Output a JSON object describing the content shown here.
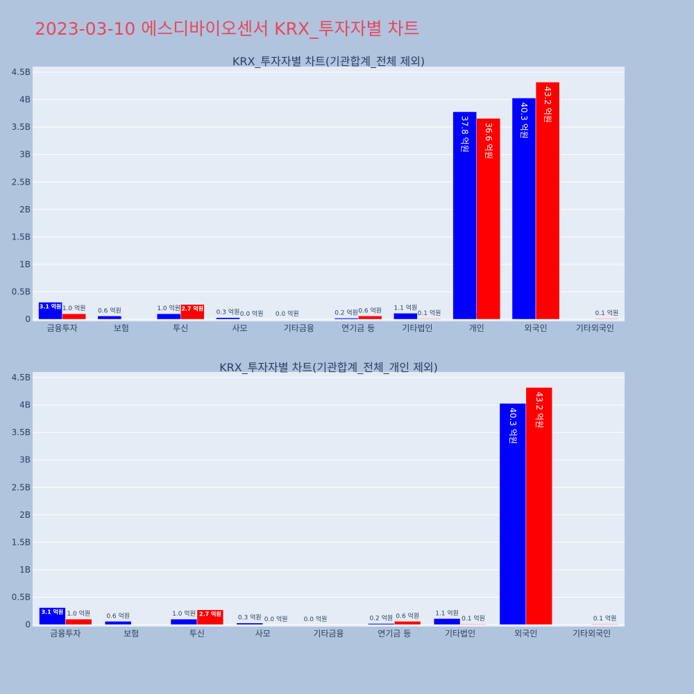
{
  "page_title": "2023-03-10 에스디바이오센서 KRX_투자자별 차트",
  "colors": {
    "buy": "#0000ff",
    "sell": "#ff0000",
    "plot_bg": "#e5ecf6",
    "page_bg": "#b0c4de",
    "title": "#e8475a"
  },
  "chart_data": [
    {
      "type": "bar",
      "title": "KRX_투자자별 차트(기관합계_전체 제외)",
      "categories": [
        "금융투자",
        "보험",
        "투신",
        "사모",
        "기타금융",
        "연기금 등",
        "기타법인",
        "개인",
        "외국인",
        "기타외국인"
      ],
      "series": [
        {
          "values": [
            0.31,
            0.06,
            0.1,
            0.03,
            0.0,
            0.02,
            0.11,
            3.78,
            4.03,
            0.0
          ],
          "labels": [
            "3.1 억원",
            "0.6 억원",
            "1.0 억원",
            "0.3 억원",
            "0.0 억원",
            "0.2 억원",
            "1.1 억원",
            "37.8 억원",
            "40.3 억원",
            ""
          ]
        },
        {
          "values": [
            0.1,
            0.0,
            0.27,
            0.0,
            0.0,
            0.06,
            0.01,
            3.66,
            4.32,
            0.01
          ],
          "labels": [
            "1.0 억원",
            "",
            "2.7 억원",
            "0.0 억원",
            "",
            "0.6 억원",
            "0.1 억원",
            "36.6 억원",
            "43.2 억원",
            "0.1 억원"
          ]
        }
      ],
      "ylim": [
        0,
        4.6
      ],
      "yticks": [
        "0",
        "0.5B",
        "1B",
        "1.5B",
        "2B",
        "2.5B",
        "3B",
        "3.5B",
        "4B",
        "4.5B"
      ],
      "grid": true
    },
    {
      "type": "bar",
      "title": "KRX_투자자별 차트(기관합계_전체_개인 제외)",
      "categories": [
        "금융투자",
        "보험",
        "투신",
        "사모",
        "기타금융",
        "연기금 등",
        "기타법인",
        "외국인",
        "기타외국인"
      ],
      "series": [
        {
          "values": [
            0.31,
            0.06,
            0.1,
            0.03,
            0.0,
            0.02,
            0.11,
            4.03,
            0.0
          ],
          "labels": [
            "3.1 억원",
            "0.6 억원",
            "1.0 억원",
            "0.3 억원",
            "0.0 억원",
            "0.2 억원",
            "1.1 억원",
            "40.3 억원",
            ""
          ]
        },
        {
          "values": [
            0.1,
            0.0,
            0.27,
            0.0,
            0.0,
            0.06,
            0.01,
            4.32,
            0.01
          ],
          "labels": [
            "1.0 억원",
            "",
            "2.7 억원",
            "0.0 억원",
            "",
            "0.6 억원",
            "0.1 억원",
            "43.2 억원",
            "0.1 억원"
          ]
        }
      ],
      "ylim": [
        0,
        4.6
      ],
      "yticks": [
        "0",
        "0.5B",
        "1B",
        "1.5B",
        "2B",
        "2.5B",
        "3B",
        "3.5B",
        "4B",
        "4.5B"
      ],
      "grid": true
    }
  ]
}
